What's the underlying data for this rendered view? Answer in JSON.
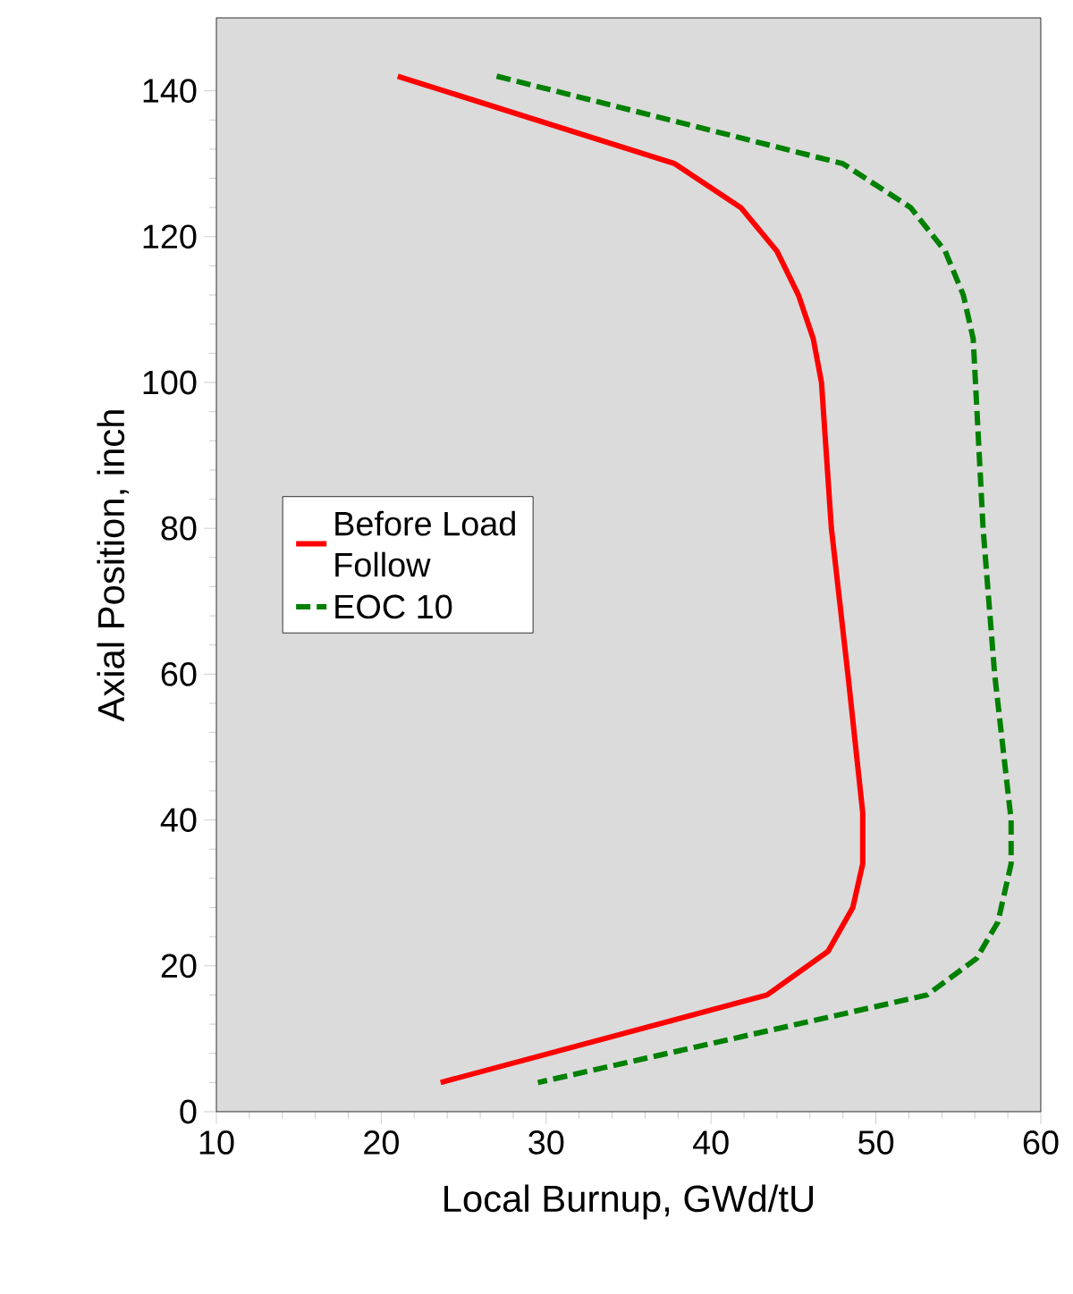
{
  "chart_data": {
    "type": "line",
    "xlabel": "Local Burnup, GWd/tU",
    "ylabel": "Axial Position, inch",
    "xlim": [
      10,
      60
    ],
    "xticks": [
      10,
      20,
      30,
      40,
      50,
      60
    ],
    "ylim": [
      0,
      150
    ],
    "yticks": [
      0,
      20,
      40,
      60,
      80,
      100,
      120,
      140
    ],
    "grid": false,
    "legend": "left",
    "marker": "none",
    "series": [
      {
        "name": "Before Load Follow",
        "color": "#ff0000",
        "line_style": "solid",
        "x": [
          21.0,
          37.8,
          41.8,
          44.0,
          45.3,
          46.2,
          46.7,
          47.3,
          48.3,
          49.2,
          49.2,
          48.6,
          47.1,
          43.4,
          23.6
        ],
        "values": [
          142,
          130,
          124,
          118,
          112,
          106,
          100,
          80,
          60,
          41,
          34,
          28,
          22,
          16,
          4
        ]
      },
      {
        "name": "EOC 10",
        "color": "#008000",
        "line_style": "dashed",
        "x": [
          27.0,
          48.0,
          52.1,
          54.2,
          55.3,
          55.9,
          56.5,
          57.2,
          58.2,
          58.2,
          57.4,
          56.1,
          53.1,
          29.5
        ],
        "values": [
          142,
          130,
          124,
          118,
          112,
          106,
          80,
          60,
          40,
          34,
          26,
          21,
          16,
          4
        ]
      }
    ]
  }
}
